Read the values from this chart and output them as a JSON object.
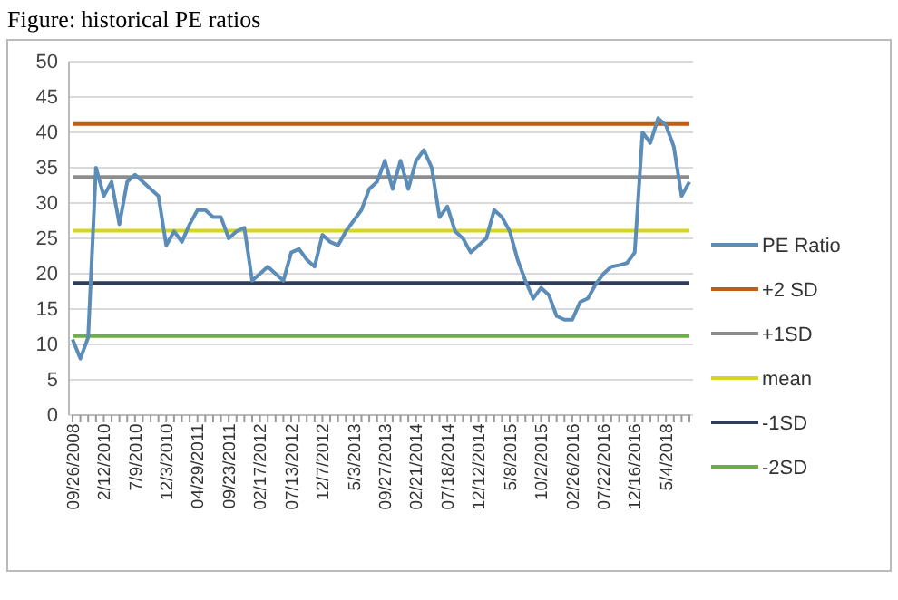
{
  "chart_data": {
    "type": "line",
    "title": "Figure: historical PE ratios",
    "categories": [
      "09/26/2008",
      null,
      null,
      null,
      "2/12/2010",
      null,
      null,
      null,
      "7/9/2010",
      null,
      null,
      null,
      "12/3/2010",
      null,
      null,
      null,
      "04/29/2011",
      null,
      null,
      null,
      "09/23/2011",
      null,
      null,
      null,
      "02/17/2012",
      null,
      null,
      null,
      "07/13/2012",
      null,
      null,
      null,
      "12/7/2012",
      null,
      null,
      null,
      "5/3/2013",
      null,
      null,
      null,
      "09/27/2013",
      null,
      null,
      null,
      "02/21/2014",
      null,
      null,
      null,
      "07/18/2014",
      null,
      null,
      null,
      "12/12/2014",
      null,
      null,
      null,
      "5/8/2015",
      null,
      null,
      null,
      "10/2/2015",
      null,
      null,
      null,
      "02/26/2016",
      null,
      null,
      null,
      "07/22/2016",
      null,
      null,
      null,
      "12/16/2016",
      null,
      null,
      null,
      "5/4/2018",
      null,
      null,
      null
    ],
    "series": [
      {
        "name": "PE Ratio",
        "color": "#5b8db8",
        "values": [
          10.7,
          8,
          11,
          35,
          31,
          33,
          27,
          33,
          34,
          33,
          32,
          31,
          24,
          26,
          24.5,
          27,
          29,
          29,
          28,
          28,
          25,
          26,
          26.5,
          19,
          20,
          21,
          20,
          19,
          23,
          23.5,
          22,
          21,
          25.5,
          24.5,
          24,
          26,
          27.5,
          29,
          32,
          33,
          36,
          32,
          36,
          32,
          36,
          37.5,
          35,
          28,
          29.5,
          26,
          25,
          23,
          24,
          25,
          29,
          28,
          26,
          22,
          19,
          16.5,
          18,
          17,
          14,
          13.5,
          13.5,
          16,
          16.5,
          18.5,
          20,
          21,
          21.2,
          21.5,
          23,
          40,
          38.5,
          42,
          41,
          38,
          31,
          33
        ]
      },
      {
        "name": "+2 SD",
        "color": "#c55a11",
        "values": [
          41.2,
          41.2,
          41.2,
          41.2,
          41.2,
          41.2,
          41.2,
          41.2,
          41.2,
          41.2,
          41.2,
          41.2,
          41.2,
          41.2,
          41.2,
          41.2,
          41.2,
          41.2,
          41.2,
          41.2,
          41.2,
          41.2,
          41.2,
          41.2,
          41.2,
          41.2,
          41.2,
          41.2,
          41.2,
          41.2,
          41.2,
          41.2,
          41.2,
          41.2,
          41.2,
          41.2,
          41.2,
          41.2,
          41.2,
          41.2,
          41.2,
          41.2,
          41.2,
          41.2,
          41.2,
          41.2,
          41.2,
          41.2,
          41.2,
          41.2,
          41.2,
          41.2,
          41.2,
          41.2,
          41.2,
          41.2,
          41.2,
          41.2,
          41.2,
          41.2,
          41.2,
          41.2,
          41.2,
          41.2,
          41.2,
          41.2,
          41.2,
          41.2,
          41.2,
          41.2,
          41.2,
          41.2,
          41.2,
          41.2,
          41.2,
          41.2,
          41.2,
          41.2,
          41.2,
          41.2
        ]
      },
      {
        "name": "+1SD",
        "color": "#8c8c8c",
        "values": [
          33.7,
          33.7,
          33.7,
          33.7,
          33.7,
          33.7,
          33.7,
          33.7,
          33.7,
          33.7,
          33.7,
          33.7,
          33.7,
          33.7,
          33.7,
          33.7,
          33.7,
          33.7,
          33.7,
          33.7,
          33.7,
          33.7,
          33.7,
          33.7,
          33.7,
          33.7,
          33.7,
          33.7,
          33.7,
          33.7,
          33.7,
          33.7,
          33.7,
          33.7,
          33.7,
          33.7,
          33.7,
          33.7,
          33.7,
          33.7,
          33.7,
          33.7,
          33.7,
          33.7,
          33.7,
          33.7,
          33.7,
          33.7,
          33.7,
          33.7,
          33.7,
          33.7,
          33.7,
          33.7,
          33.7,
          33.7,
          33.7,
          33.7,
          33.7,
          33.7,
          33.7,
          33.7,
          33.7,
          33.7,
          33.7,
          33.7,
          33.7,
          33.7,
          33.7,
          33.7,
          33.7,
          33.7,
          33.7,
          33.7,
          33.7,
          33.7,
          33.7,
          33.7,
          33.7,
          33.7
        ]
      },
      {
        "name": "mean",
        "color": "#d6d61a",
        "values": [
          26.1,
          26.1,
          26.1,
          26.1,
          26.1,
          26.1,
          26.1,
          26.1,
          26.1,
          26.1,
          26.1,
          26.1,
          26.1,
          26.1,
          26.1,
          26.1,
          26.1,
          26.1,
          26.1,
          26.1,
          26.1,
          26.1,
          26.1,
          26.1,
          26.1,
          26.1,
          26.1,
          26.1,
          26.1,
          26.1,
          26.1,
          26.1,
          26.1,
          26.1,
          26.1,
          26.1,
          26.1,
          26.1,
          26.1,
          26.1,
          26.1,
          26.1,
          26.1,
          26.1,
          26.1,
          26.1,
          26.1,
          26.1,
          26.1,
          26.1,
          26.1,
          26.1,
          26.1,
          26.1,
          26.1,
          26.1,
          26.1,
          26.1,
          26.1,
          26.1,
          26.1,
          26.1,
          26.1,
          26.1,
          26.1,
          26.1,
          26.1,
          26.1,
          26.1,
          26.1,
          26.1,
          26.1,
          26.1,
          26.1,
          26.1,
          26.1,
          26.1,
          26.1,
          26.1,
          26.1
        ]
      },
      {
        "name": "-1SD",
        "color": "#2f3d5a",
        "values": [
          18.7,
          18.7,
          18.7,
          18.7,
          18.7,
          18.7,
          18.7,
          18.7,
          18.7,
          18.7,
          18.7,
          18.7,
          18.7,
          18.7,
          18.7,
          18.7,
          18.7,
          18.7,
          18.7,
          18.7,
          18.7,
          18.7,
          18.7,
          18.7,
          18.7,
          18.7,
          18.7,
          18.7,
          18.7,
          18.7,
          18.7,
          18.7,
          18.7,
          18.7,
          18.7,
          18.7,
          18.7,
          18.7,
          18.7,
          18.7,
          18.7,
          18.7,
          18.7,
          18.7,
          18.7,
          18.7,
          18.7,
          18.7,
          18.7,
          18.7,
          18.7,
          18.7,
          18.7,
          18.7,
          18.7,
          18.7,
          18.7,
          18.7,
          18.7,
          18.7,
          18.7,
          18.7,
          18.7,
          18.7,
          18.7,
          18.7,
          18.7,
          18.7,
          18.7,
          18.7,
          18.7,
          18.7,
          18.7,
          18.7,
          18.7,
          18.7,
          18.7,
          18.7,
          18.7,
          18.7
        ]
      },
      {
        "name": "-2SD",
        "color": "#70ad47",
        "values": [
          11.2,
          11.2,
          11.2,
          11.2,
          11.2,
          11.2,
          11.2,
          11.2,
          11.2,
          11.2,
          11.2,
          11.2,
          11.2,
          11.2,
          11.2,
          11.2,
          11.2,
          11.2,
          11.2,
          11.2,
          11.2,
          11.2,
          11.2,
          11.2,
          11.2,
          11.2,
          11.2,
          11.2,
          11.2,
          11.2,
          11.2,
          11.2,
          11.2,
          11.2,
          11.2,
          11.2,
          11.2,
          11.2,
          11.2,
          11.2,
          11.2,
          11.2,
          11.2,
          11.2,
          11.2,
          11.2,
          11.2,
          11.2,
          11.2,
          11.2,
          11.2,
          11.2,
          11.2,
          11.2,
          11.2,
          11.2,
          11.2,
          11.2,
          11.2,
          11.2,
          11.2,
          11.2,
          11.2,
          11.2,
          11.2,
          11.2,
          11.2,
          11.2,
          11.2,
          11.2,
          11.2,
          11.2,
          11.2,
          11.2,
          11.2,
          11.2,
          11.2,
          11.2,
          11.2,
          11.2
        ]
      }
    ],
    "ylim": [
      0,
      50
    ],
    "yticks": [
      0,
      5,
      10,
      15,
      20,
      25,
      30,
      35,
      40,
      45,
      50
    ],
    "grid": "y",
    "legend": "right",
    "marker": "none",
    "line_style": "solid"
  }
}
